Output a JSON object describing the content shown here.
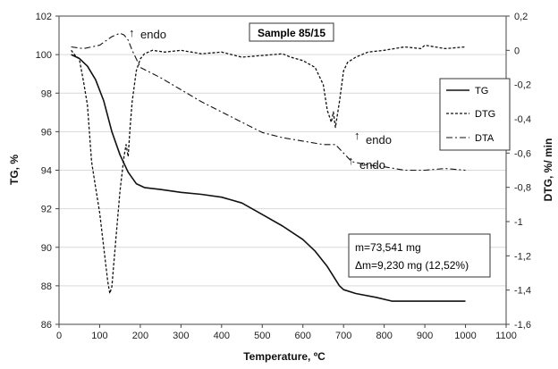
{
  "chart_data": {
    "type": "line",
    "title": "Sample 85/15",
    "xlabel": "Temperature, ºC",
    "ylabel_left": "TG, %",
    "ylabel_right": "DTG, %/ min",
    "xlim": [
      0,
      1100
    ],
    "ylim_left": [
      86,
      102
    ],
    "ylim_right": [
      -1.6,
      0.2
    ],
    "x_ticks": [
      "0",
      "100",
      "200",
      "300",
      "400",
      "500",
      "600",
      "700",
      "800",
      "900",
      "1000",
      "1100"
    ],
    "y_left_ticks": [
      "86",
      "88",
      "90",
      "92",
      "94",
      "96",
      "98",
      "100",
      "102"
    ],
    "y_right_ticks": [
      "-1,6",
      "-1,4",
      "-1,2",
      "-1",
      "-0,8",
      "-0,6",
      "-0,4",
      "-0,2",
      "0",
      "0,2"
    ],
    "legend": {
      "placement": "right",
      "entries": [
        "TG",
        "DTG",
        "DTA"
      ]
    },
    "annotations": [
      "endo",
      "endo",
      "endo"
    ],
    "info_box": {
      "line1": "m=73,541 mg",
      "line2": "Δm=9,230 mg (12,52%)"
    },
    "series": [
      {
        "name": "TG",
        "axis": "left",
        "style": "solid",
        "x": [
          30,
          50,
          70,
          90,
          110,
          130,
          150,
          170,
          190,
          210,
          250,
          300,
          350,
          400,
          450,
          500,
          550,
          600,
          630,
          660,
          690,
          700,
          730,
          780,
          820,
          900,
          1000
        ],
        "y": [
          100.0,
          99.8,
          99.4,
          98.7,
          97.6,
          96.0,
          94.8,
          93.9,
          93.3,
          93.1,
          93.0,
          92.85,
          92.75,
          92.6,
          92.3,
          91.7,
          91.1,
          90.4,
          89.8,
          89.0,
          88.0,
          87.8,
          87.6,
          87.4,
          87.2,
          87.2,
          87.2
        ]
      },
      {
        "name": "DTG",
        "axis": "right",
        "style": "dashed",
        "x": [
          30,
          40,
          50,
          60,
          70,
          80,
          90,
          100,
          110,
          120,
          125,
          130,
          140,
          150,
          160,
          165,
          170,
          175,
          180,
          190,
          200,
          210,
          230,
          260,
          300,
          350,
          400,
          450,
          500,
          550,
          570,
          600,
          630,
          650,
          660,
          670,
          675,
          680,
          690,
          700,
          710,
          730,
          760,
          800,
          850,
          890,
          900,
          950,
          1000
        ],
        "y": [
          0.0,
          -0.03,
          -0.05,
          -0.18,
          -0.32,
          -0.65,
          -0.8,
          -0.95,
          -1.15,
          -1.35,
          -1.42,
          -1.38,
          -1.1,
          -0.82,
          -0.62,
          -0.55,
          -0.62,
          -0.45,
          -0.3,
          -0.12,
          -0.05,
          -0.02,
          0.0,
          -0.01,
          0.0,
          -0.02,
          -0.01,
          -0.04,
          -0.03,
          -0.02,
          -0.04,
          -0.06,
          -0.1,
          -0.2,
          -0.35,
          -0.42,
          -0.36,
          -0.45,
          -0.3,
          -0.12,
          -0.07,
          -0.04,
          -0.01,
          0.0,
          0.02,
          0.01,
          0.03,
          0.01,
          0.02
        ]
      },
      {
        "name": "DTA",
        "axis": "right",
        "style": "dashdot",
        "x": [
          30,
          60,
          100,
          130,
          150,
          160,
          170,
          180,
          190,
          200,
          250,
          300,
          350,
          400,
          450,
          500,
          550,
          600,
          650,
          680,
          700,
          720,
          740,
          760,
          800,
          850,
          900,
          950,
          1000
        ],
        "y": [
          0.02,
          0.01,
          0.03,
          0.08,
          0.1,
          0.09,
          0.06,
          0.0,
          -0.05,
          -0.1,
          -0.16,
          -0.23,
          -0.3,
          -0.36,
          -0.42,
          -0.48,
          -0.51,
          -0.53,
          -0.55,
          -0.55,
          -0.6,
          -0.65,
          -0.66,
          -0.67,
          -0.68,
          -0.7,
          -0.7,
          -0.69,
          -0.7
        ]
      }
    ]
  }
}
